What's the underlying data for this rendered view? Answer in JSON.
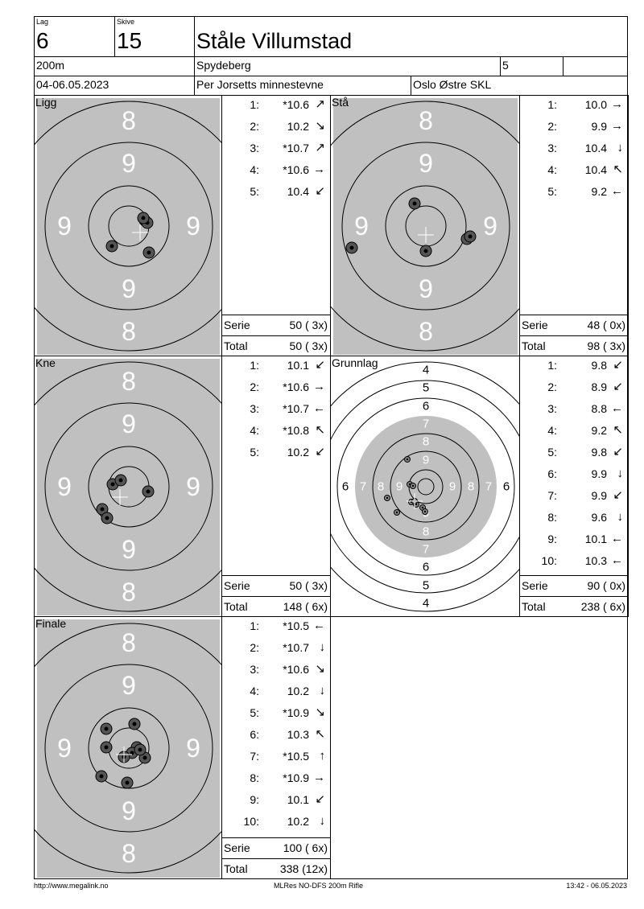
{
  "header": {
    "lag_label": "Lag",
    "lag": "6",
    "skive_label": "Skive",
    "skive": "15",
    "name": "Ståle Villumstad",
    "distance": "200m",
    "place": "Spydeberg",
    "class": "5",
    "extra": "",
    "date": "04-06.05.2023",
    "event": "Per Jorsetts minnestevne",
    "club": "Oslo Østre SKL"
  },
  "colors": {
    "target_gray": "#c0c0c0",
    "ring_labels_white": "#ffffff"
  },
  "series": [
    {
      "id": "ligg",
      "title": "Ligg",
      "shots": [
        {
          "n": "1:",
          "v": "*10.6",
          "dir": "↗"
        },
        {
          "n": "2:",
          "v": "10.2",
          "dir": "↘"
        },
        {
          "n": "3:",
          "v": "*10.7",
          "dir": "↗"
        },
        {
          "n": "4:",
          "v": "*10.6",
          "dir": "→"
        },
        {
          "n": "5:",
          "v": "10.4",
          "dir": "↙"
        }
      ],
      "serie_label": "Serie",
      "serie": "50 ( 3x)",
      "total_label": "Total",
      "total": "50 ( 3x)"
    },
    {
      "id": "sta",
      "title": "Stå",
      "shots": [
        {
          "n": "1:",
          "v": "10.0",
          "dir": "→"
        },
        {
          "n": "2:",
          "v": "9.9",
          "dir": "→"
        },
        {
          "n": "3:",
          "v": "10.4",
          "dir": "↓"
        },
        {
          "n": "4:",
          "v": "10.4",
          "dir": "↖"
        },
        {
          "n": "5:",
          "v": "9.2",
          "dir": "←"
        }
      ],
      "serie_label": "Serie",
      "serie": "48 ( 0x)",
      "total_label": "Total",
      "total": "98 ( 3x)"
    },
    {
      "id": "kne",
      "title": "Kne",
      "shots": [
        {
          "n": "1:",
          "v": "10.1",
          "dir": "↙"
        },
        {
          "n": "2:",
          "v": "*10.6",
          "dir": "→"
        },
        {
          "n": "3:",
          "v": "*10.7",
          "dir": "←"
        },
        {
          "n": "4:",
          "v": "*10.8",
          "dir": "↖"
        },
        {
          "n": "5:",
          "v": "10.2",
          "dir": "↙"
        }
      ],
      "serie_label": "Serie",
      "serie": "50 ( 3x)",
      "total_label": "Total",
      "total": "148 ( 6x)"
    },
    {
      "id": "grunnlag",
      "title": "Grunnlag",
      "shots": [
        {
          "n": "1:",
          "v": "9.8",
          "dir": "↙"
        },
        {
          "n": "2:",
          "v": "8.9",
          "dir": "↙"
        },
        {
          "n": "3:",
          "v": "8.8",
          "dir": "←"
        },
        {
          "n": "4:",
          "v": "9.2",
          "dir": "↖"
        },
        {
          "n": "5:",
          "v": "9.8",
          "dir": "↙"
        },
        {
          "n": "6:",
          "v": "9.9",
          "dir": "↓"
        },
        {
          "n": "7:",
          "v": "9.9",
          "dir": "↙"
        },
        {
          "n": "8:",
          "v": "9.6",
          "dir": "↓"
        },
        {
          "n": "9:",
          "v": "10.1",
          "dir": "←"
        },
        {
          "n": "10:",
          "v": "10.3",
          "dir": "←"
        }
      ],
      "serie_label": "Serie",
      "serie": "90 ( 0x)",
      "total_label": "Total",
      "total": "238 ( 6x)"
    },
    {
      "id": "finale",
      "title": "Finale",
      "shots": [
        {
          "n": "1:",
          "v": "*10.5",
          "dir": "←"
        },
        {
          "n": "2:",
          "v": "*10.7",
          "dir": "↓"
        },
        {
          "n": "3:",
          "v": "*10.6",
          "dir": "↘"
        },
        {
          "n": "4:",
          "v": "10.2",
          "dir": "↓"
        },
        {
          "n": "5:",
          "v": "*10.9",
          "dir": "↘"
        },
        {
          "n": "6:",
          "v": "10.3",
          "dir": "↖"
        },
        {
          "n": "7:",
          "v": "*10.5",
          "dir": "↑"
        },
        {
          "n": "8:",
          "v": "*10.9",
          "dir": "→"
        },
        {
          "n": "9:",
          "v": "10.1",
          "dir": "↙"
        },
        {
          "n": "10:",
          "v": "10.2",
          "dir": "↓"
        }
      ],
      "serie_label": "Serie",
      "serie": "100 ( 6x)",
      "total_label": "Total",
      "total": "338 (12x)"
    }
  ],
  "footer": {
    "left": "http://www.megalink.no",
    "center": "MLRes NO-DFS 200m Rifle",
    "right": "13:42 - 06.05.2023"
  }
}
